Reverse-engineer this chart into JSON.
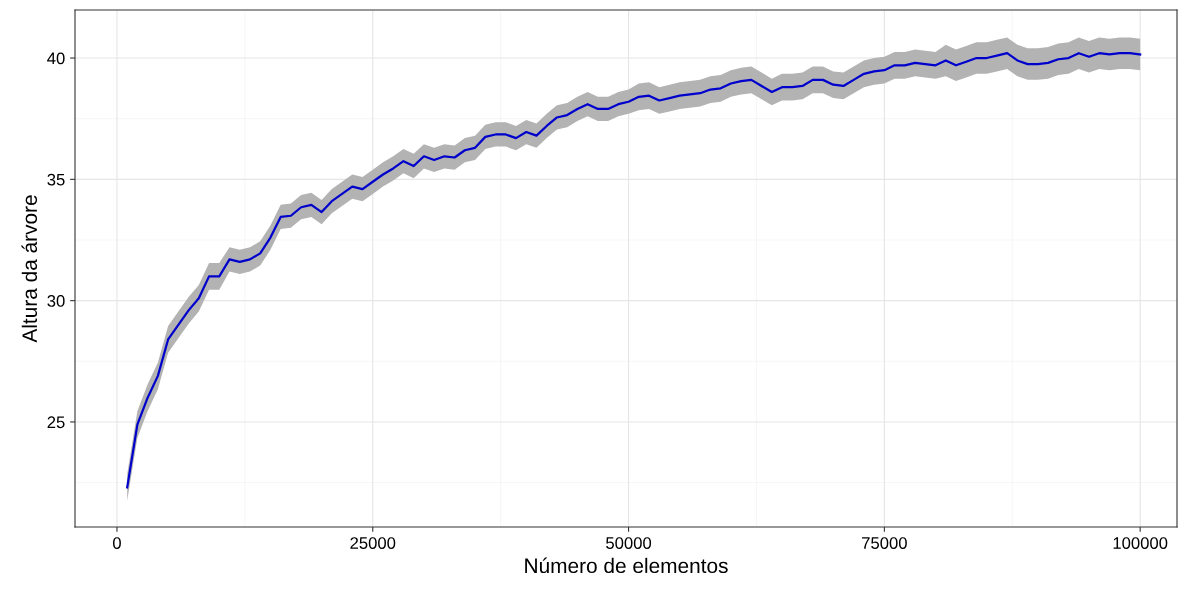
{
  "chart_data": {
    "type": "line",
    "xlabel": "Número de elementos",
    "ylabel": "Altura da árvore",
    "x": [
      1000,
      2000,
      3000,
      4000,
      5000,
      6000,
      7000,
      8000,
      9000,
      10000,
      11000,
      12000,
      13000,
      14000,
      15000,
      16000,
      17000,
      18000,
      19000,
      20000,
      21000,
      22000,
      23000,
      24000,
      25000,
      26000,
      27000,
      28000,
      29000,
      30000,
      31000,
      32000,
      33000,
      34000,
      35000,
      36000,
      37000,
      38000,
      39000,
      40000,
      41000,
      42000,
      43000,
      44000,
      45000,
      46000,
      47000,
      48000,
      49000,
      50000,
      51000,
      52000,
      53000,
      54000,
      55000,
      56000,
      57000,
      58000,
      59000,
      60000,
      61000,
      62000,
      63000,
      64000,
      65000,
      66000,
      67000,
      68000,
      69000,
      70000,
      71000,
      72000,
      73000,
      74000,
      75000,
      76000,
      77000,
      78000,
      79000,
      80000,
      81000,
      82000,
      83000,
      84000,
      85000,
      86000,
      87000,
      88000,
      89000,
      90000,
      91000,
      92000,
      93000,
      94000,
      95000,
      96000,
      97000,
      98000,
      99000,
      100000
    ],
    "series": [
      {
        "color": "#0000cc",
        "values": [
          22.3,
          24.9,
          26.0,
          26.9,
          28.4,
          29.0,
          29.6,
          30.1,
          31.0,
          31.0,
          31.7,
          31.6,
          31.7,
          31.95,
          32.6,
          33.45,
          33.5,
          33.85,
          33.95,
          33.65,
          34.1,
          34.4,
          34.7,
          34.6,
          34.9,
          35.2,
          35.45,
          35.75,
          35.55,
          35.95,
          35.8,
          35.95,
          35.9,
          36.2,
          36.3,
          36.75,
          36.85,
          36.85,
          36.7,
          36.95,
          36.8,
          37.2,
          37.55,
          37.65,
          37.9,
          38.1,
          37.9,
          37.9,
          38.1,
          38.2,
          38.4,
          38.45,
          38.25,
          38.35,
          38.45,
          38.5,
          38.55,
          38.7,
          38.75,
          38.95,
          39.05,
          39.1,
          38.85,
          38.6,
          38.8,
          38.8,
          38.85,
          39.1,
          39.1,
          38.9,
          38.85,
          39.1,
          39.35,
          39.45,
          39.5,
          39.7,
          39.7,
          39.8,
          39.75,
          39.7,
          39.9,
          39.7,
          39.85,
          40.0,
          40.0,
          40.1,
          40.2,
          39.9,
          39.75,
          39.75,
          39.8,
          39.95,
          40.0,
          40.2,
          40.05,
          40.2,
          40.15,
          40.2,
          40.2,
          40.15
        ],
        "lower": [
          21.75,
          24.35,
          25.45,
          26.35,
          27.85,
          28.45,
          29.05,
          29.55,
          30.45,
          30.45,
          31.2,
          31.1,
          31.2,
          31.45,
          32.1,
          32.95,
          33.0,
          33.35,
          33.45,
          33.15,
          33.6,
          33.9,
          34.2,
          34.1,
          34.4,
          34.7,
          34.95,
          35.25,
          35.05,
          35.45,
          35.3,
          35.45,
          35.4,
          35.7,
          35.8,
          36.25,
          36.35,
          36.35,
          36.2,
          36.45,
          36.3,
          36.7,
          37.05,
          37.15,
          37.4,
          37.6,
          37.4,
          37.4,
          37.6,
          37.7,
          37.85,
          37.9,
          37.7,
          37.8,
          37.9,
          37.95,
          38.0,
          38.15,
          38.2,
          38.4,
          38.5,
          38.55,
          38.3,
          38.05,
          38.25,
          38.25,
          38.3,
          38.55,
          38.55,
          38.35,
          38.3,
          38.55,
          38.8,
          38.9,
          38.95,
          39.15,
          39.15,
          39.25,
          39.2,
          39.15,
          39.25,
          39.05,
          39.2,
          39.35,
          39.35,
          39.45,
          39.55,
          39.25,
          39.1,
          39.1,
          39.15,
          39.3,
          39.35,
          39.55,
          39.4,
          39.55,
          39.5,
          39.55,
          39.55,
          39.5
        ],
        "upper": [
          22.85,
          25.45,
          26.55,
          27.45,
          28.95,
          29.55,
          30.15,
          30.65,
          31.55,
          31.55,
          32.2,
          32.1,
          32.2,
          32.45,
          33.1,
          33.95,
          34.0,
          34.35,
          34.45,
          34.15,
          34.6,
          34.9,
          35.2,
          35.1,
          35.4,
          35.7,
          35.95,
          36.25,
          36.05,
          36.45,
          36.3,
          36.45,
          36.4,
          36.7,
          36.8,
          37.25,
          37.35,
          37.35,
          37.2,
          37.45,
          37.3,
          37.7,
          38.05,
          38.15,
          38.4,
          38.6,
          38.4,
          38.4,
          38.6,
          38.7,
          38.95,
          39.0,
          38.8,
          38.9,
          39.0,
          39.05,
          39.1,
          39.25,
          39.3,
          39.5,
          39.6,
          39.65,
          39.4,
          39.15,
          39.35,
          39.35,
          39.4,
          39.65,
          39.65,
          39.45,
          39.4,
          39.65,
          39.9,
          40.0,
          40.05,
          40.25,
          40.25,
          40.35,
          40.3,
          40.25,
          40.55,
          40.35,
          40.5,
          40.65,
          40.65,
          40.75,
          40.85,
          40.55,
          40.4,
          40.4,
          40.45,
          40.6,
          40.65,
          40.85,
          40.7,
          40.85,
          40.8,
          40.85,
          40.85,
          40.8
        ]
      }
    ],
    "xlim": [
      -4100,
      103600
    ],
    "xticks": [
      0,
      25000,
      50000,
      75000,
      100000
    ],
    "ylim": [
      20.67,
      41.98
    ],
    "yticks": [
      25,
      30,
      35,
      40
    ],
    "grid": true
  }
}
